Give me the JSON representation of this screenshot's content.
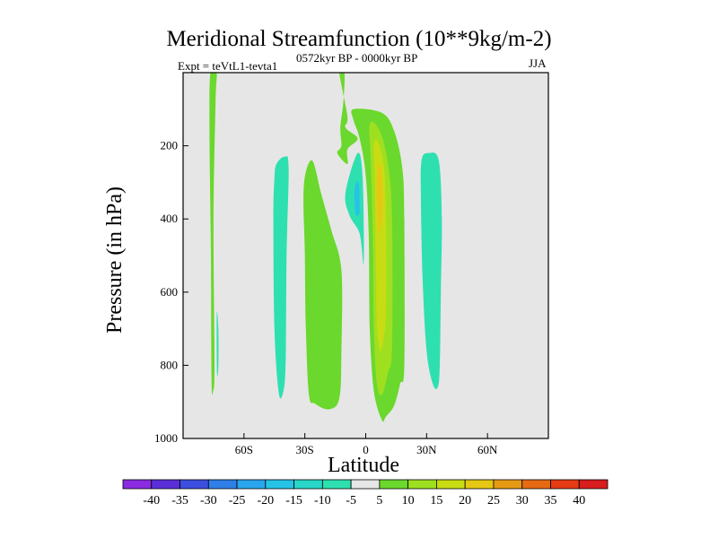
{
  "chart_data": {
    "type": "contour",
    "title": "Meridional Streamfunction (10**9kg/m-2)",
    "left_subtitle": "Expt = teVtL1-tevta1",
    "center_subtitle": "0572kyr BP - 0000kyr BP",
    "right_subtitle": "JJA",
    "xlabel": "Latitude",
    "ylabel": "Pressure (in hPa)",
    "xlim": [
      -90,
      90
    ],
    "ylim": [
      1000,
      0
    ],
    "xticks": [
      {
        "value": -60,
        "label": "60S"
      },
      {
        "value": -30,
        "label": "30S"
      },
      {
        "value": 0,
        "label": "0"
      },
      {
        "value": 30,
        "label": "30N"
      },
      {
        "value": 60,
        "label": "60N"
      }
    ],
    "yticks": [
      {
        "value": 200,
        "label": "200"
      },
      {
        "value": 400,
        "label": "400"
      },
      {
        "value": 600,
        "label": "600"
      },
      {
        "value": 800,
        "label": "800"
      },
      {
        "value": 1000,
        "label": "1000"
      }
    ],
    "background_color": "#e6e6e6",
    "colorbar": {
      "levels": [
        -40,
        -35,
        -30,
        -25,
        -20,
        -15,
        -10,
        -5,
        5,
        10,
        15,
        20,
        25,
        30,
        35,
        40
      ],
      "colors": [
        "#8a2be2",
        "#5b2fd8",
        "#3c4fe0",
        "#2f7fe8",
        "#2aa6ee",
        "#27c3e6",
        "#2ad6c8",
        "#2ee0b0",
        "#e6e6e6",
        "#6ad82c",
        "#9ee020",
        "#c8dc14",
        "#e6c814",
        "#e69a14",
        "#e66a14",
        "#e63c14",
        "#d81e1e"
      ]
    },
    "regions": [
      {
        "name": "high-lat-south-positive-band",
        "bin": "5 to 10",
        "color": "#6ad82c",
        "points": [
          [
            -76.5,
            0
          ],
          [
            -73.5,
            0
          ],
          [
            -74,
            80
          ],
          [
            -75,
            400
          ],
          [
            -74.5,
            800
          ],
          [
            -75.2,
            870
          ],
          [
            -76,
            840
          ],
          [
            -76.3,
            500
          ],
          [
            -77,
            150
          ]
        ]
      },
      {
        "name": "high-lat-south-negative-sliver",
        "bin": "-5 to -10",
        "color": "#2ee0b0",
        "points": [
          [
            -73.4,
            660
          ],
          [
            -72.6,
            700
          ],
          [
            -72.6,
            800
          ],
          [
            -73.3,
            820
          ]
        ]
      },
      {
        "name": "southern-midlat-negative-cell",
        "bin": "-5 to -10",
        "color": "#2ee0b0",
        "points": [
          [
            -44,
            250
          ],
          [
            -40,
            230
          ],
          [
            -38,
            260
          ],
          [
            -39,
            500
          ],
          [
            -39.5,
            800
          ],
          [
            -41,
            880
          ],
          [
            -43,
            870
          ],
          [
            -45,
            700
          ],
          [
            -45.5,
            400
          ],
          [
            -45,
            290
          ]
        ]
      },
      {
        "name": "southern-subtropical-positive-cell",
        "bin": "5 to 10",
        "color": "#6ad82c",
        "points": [
          [
            -30.5,
            310
          ],
          [
            -26.5,
            240
          ],
          [
            -22,
            330
          ],
          [
            -17,
            430
          ],
          [
            -12,
            540
          ],
          [
            -12,
            760
          ],
          [
            -13,
            890
          ],
          [
            -18,
            920
          ],
          [
            -25,
            905
          ],
          [
            -28,
            880
          ],
          [
            -29.5,
            700
          ],
          [
            -30,
            500
          ]
        ]
      },
      {
        "name": "tropical-negative-cell",
        "bin": "-5 to -10",
        "color": "#2ee0b0",
        "points": [
          [
            -10,
            330
          ],
          [
            -4,
            220
          ],
          [
            -1.5,
            290
          ],
          [
            -1,
            520
          ],
          [
            -3,
            440
          ],
          [
            -8,
            390
          ]
        ]
      },
      {
        "name": "tropical-negative-core",
        "bin": "-10 to -15",
        "color": "#27c3e6",
        "points": [
          [
            -5.5,
            320
          ],
          [
            -3.5,
            300
          ],
          [
            -3,
            380
          ],
          [
            -5,
            385
          ]
        ]
      },
      {
        "name": "equatorial-upper-positive-strip",
        "bin": "5 to 10",
        "color": "#6ad82c",
        "points": [
          [
            -13,
            0
          ],
          [
            -10.5,
            0
          ],
          [
            -11,
            80
          ],
          [
            -12.5,
            150
          ],
          [
            -12,
            200
          ],
          [
            -14,
            220
          ],
          [
            -9,
            250
          ],
          [
            -9,
            210
          ],
          [
            -4,
            180
          ],
          [
            -10,
            150
          ],
          [
            -9,
            120
          ]
        ]
      },
      {
        "name": "northern-hadley-positive-cell",
        "bin": "5 to 10",
        "color": "#6ad82c",
        "points": [
          [
            -6,
            100
          ],
          [
            8,
            110
          ],
          [
            14,
            160
          ],
          [
            18,
            260
          ],
          [
            19,
            400
          ],
          [
            19,
            800
          ],
          [
            17,
            850
          ],
          [
            14,
            910
          ],
          [
            10,
            940
          ],
          [
            8,
            950
          ],
          [
            4,
            870
          ],
          [
            2,
            700
          ],
          [
            1.5,
            450
          ],
          [
            0,
            280
          ],
          [
            -3,
            180
          ],
          [
            -6,
            130
          ]
        ]
      },
      {
        "name": "northern-hadley-level-10",
        "bin": "10 to 15",
        "color": "#9ee020",
        "points": [
          [
            2,
            140
          ],
          [
            7,
            160
          ],
          [
            11,
            250
          ],
          [
            13,
            400
          ],
          [
            13,
            750
          ],
          [
            11,
            820
          ],
          [
            8,
            880
          ],
          [
            5.5,
            850
          ],
          [
            4,
            700
          ],
          [
            3.5,
            450
          ],
          [
            2.5,
            250
          ]
        ]
      },
      {
        "name": "northern-hadley-level-15",
        "bin": "15 to 20",
        "color": "#c8dc14",
        "points": [
          [
            4,
            200
          ],
          [
            6,
            190
          ],
          [
            9,
            260
          ],
          [
            10,
            400
          ],
          [
            10,
            640
          ],
          [
            9,
            720
          ],
          [
            7,
            760
          ],
          [
            5.5,
            680
          ],
          [
            5,
            500
          ],
          [
            4.5,
            300
          ]
        ]
      },
      {
        "name": "northern-hadley-core",
        "bin": "20 to 25",
        "color": "#e6c814",
        "points": [
          [
            5.8,
            260
          ],
          [
            7.5,
            260
          ],
          [
            8.5,
            340
          ],
          [
            8,
            400
          ],
          [
            6.5,
            440
          ],
          [
            5.5,
            350
          ]
        ]
      },
      {
        "name": "northern-midlat-negative-cell",
        "bin": "-5 to -10",
        "color": "#2ee0b0",
        "points": [
          [
            27.5,
            240
          ],
          [
            31,
            220
          ],
          [
            36,
            240
          ],
          [
            37.5,
            400
          ],
          [
            37,
            600
          ],
          [
            36.5,
            800
          ],
          [
            35.5,
            860
          ],
          [
            33,
            850
          ],
          [
            30,
            760
          ],
          [
            28,
            560
          ],
          [
            27.2,
            350
          ]
        ]
      }
    ]
  }
}
